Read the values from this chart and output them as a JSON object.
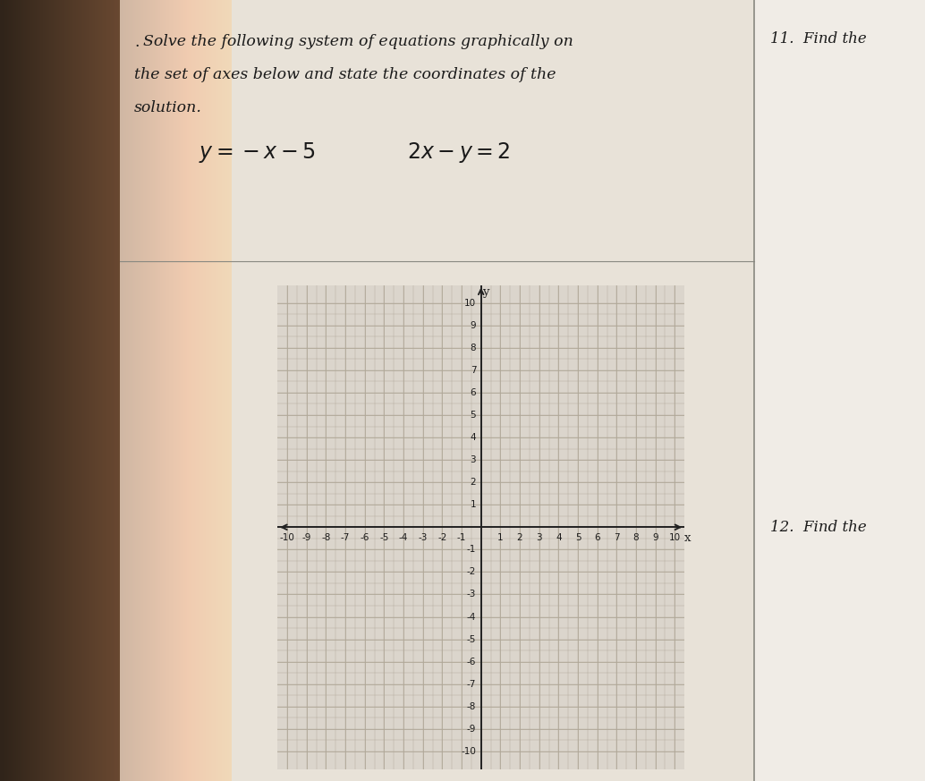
{
  "title_line1": "Solve the following system of equations graphically on",
  "title_line2": "the set of axes below and state the coordinates of the",
  "title_line3": "solution.",
  "side_label1": "11.  Find the",
  "side_label2": "12.  Find the",
  "xmin": -10,
  "xmax": 10,
  "ymin": -10,
  "ymax": 10,
  "grid_color": "#b0a898",
  "axis_color": "#222222",
  "grid_bg_color": "#dbd5cc",
  "paper_bg_color": "#e8e2d8",
  "right_paper_color": "#f0ece6",
  "left_dark_color": "#5a4a3a",
  "text_color": "#1a1a1a",
  "separator_color": "#888880",
  "label_fontsize": 7.5,
  "title_fontsize": 12.5,
  "eq_fontsize": 17,
  "side_fontsize": 12
}
